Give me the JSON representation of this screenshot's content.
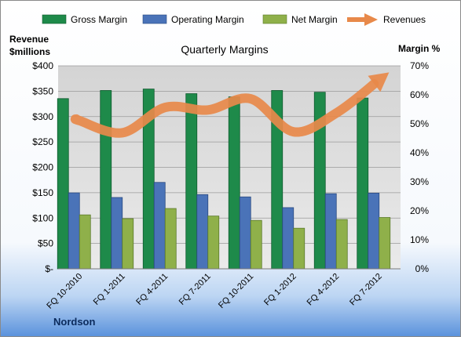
{
  "chart_data": {
    "type": "bar",
    "title": "Quarterly Margins",
    "left_axis_label": [
      "Revenue",
      "$millions"
    ],
    "right_axis_label": "Margin %",
    "footer_label": "Nordson",
    "categories": [
      "FQ 10-2010",
      "FQ 1-2011",
      "FQ 4-2011",
      "FQ 7-2011",
      "FQ 10-2011",
      "FQ 1-2012",
      "FQ 4-2012",
      "FQ 7-2012"
    ],
    "y_left": {
      "min": 0,
      "max": 400,
      "step": 50,
      "tick_labels": [
        "$-",
        "$50",
        "$100",
        "$150",
        "$200",
        "$250",
        "$300",
        "$350",
        "$400"
      ]
    },
    "y_right": {
      "min": 0,
      "max": 70,
      "step": 10,
      "tick_labels": [
        "0%",
        "10%",
        "20%",
        "30%",
        "40%",
        "50%",
        "60%",
        "70%"
      ]
    },
    "series": [
      {
        "name": "Gross Margin",
        "kind": "bar",
        "axis": "right",
        "color": "#1e8a4a",
        "values": [
          58.7,
          61.5,
          62.0,
          60.4,
          59.3,
          61.5,
          60.9,
          58.9
        ]
      },
      {
        "name": "Operating Margin",
        "kind": "bar",
        "axis": "right",
        "color": "#4a73b8",
        "values": [
          26.2,
          24.6,
          29.8,
          25.6,
          24.8,
          21.1,
          25.9,
          26.1
        ]
      },
      {
        "name": "Net Margin",
        "kind": "bar",
        "axis": "right",
        "color": "#8fb04a",
        "values": [
          18.6,
          17.3,
          20.8,
          18.2,
          16.7,
          14.0,
          17.0,
          17.7
        ]
      },
      {
        "name": "Revenues",
        "kind": "line",
        "axis": "left",
        "color": "#e8894a",
        "values": [
          292,
          268,
          318,
          313,
          335,
          270,
          307,
          372
        ]
      }
    ],
    "legend_position": "top",
    "grid": true
  }
}
